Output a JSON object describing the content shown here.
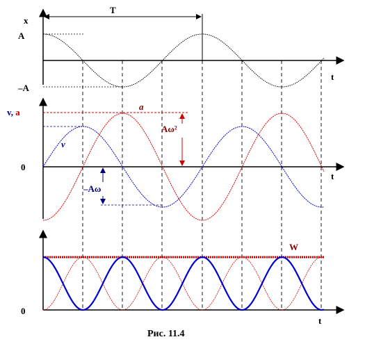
{
  "figure": {
    "caption": "Рис. 11.4",
    "colors": {
      "black": "#000000",
      "blue": "#0000cc",
      "navy": "#000080",
      "red": "#d00000",
      "darkred": "#8b0000"
    },
    "panel_x": {
      "y_axis_label": "x",
      "x_axis_label": "t",
      "amplitude_label": "A",
      "neg_amplitude_label": "–A",
      "period_label": "T"
    },
    "panel_va": {
      "y_axis_label_v": "v",
      "y_axis_label_sep": ", ",
      "y_axis_label_a": "a",
      "x_axis_label": "t",
      "zero_label": "0",
      "curve_label_a": "a",
      "curve_label_v": "v",
      "accel_amp_label": "Aω²",
      "vel_amp_label": "–Aω"
    },
    "panel_w": {
      "x_axis_label": "t",
      "zero_label": "0",
      "energy_label": "W"
    }
  }
}
